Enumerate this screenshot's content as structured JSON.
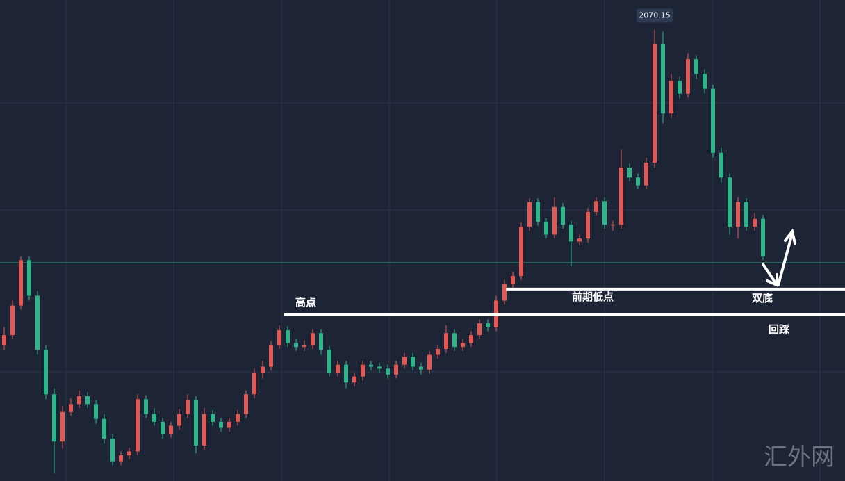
{
  "chart_data": {
    "type": "candlestick",
    "ylim": [
      1612,
      2100
    ],
    "up_color": "#e05a55",
    "down_color": "#2fb38a",
    "ohlc": [
      [
        1750,
        1768,
        1745,
        1760
      ],
      [
        1760,
        1795,
        1756,
        1790
      ],
      [
        1790,
        1840,
        1786,
        1836
      ],
      [
        1836,
        1840,
        1795,
        1800
      ],
      [
        1800,
        1805,
        1740,
        1745
      ],
      [
        1745,
        1750,
        1695,
        1700
      ],
      [
        1700,
        1706,
        1620,
        1652
      ],
      [
        1652,
        1688,
        1645,
        1682
      ],
      [
        1682,
        1696,
        1678,
        1690
      ],
      [
        1690,
        1704,
        1686,
        1698
      ],
      [
        1698,
        1702,
        1686,
        1690
      ],
      [
        1690,
        1694,
        1670,
        1675
      ],
      [
        1675,
        1680,
        1650,
        1655
      ],
      [
        1655,
        1660,
        1628,
        1632
      ],
      [
        1632,
        1642,
        1628,
        1638
      ],
      [
        1638,
        1646,
        1634,
        1642
      ],
      [
        1642,
        1700,
        1638,
        1695
      ],
      [
        1695,
        1699,
        1676,
        1680
      ],
      [
        1680,
        1686,
        1668,
        1672
      ],
      [
        1672,
        1676,
        1655,
        1660
      ],
      [
        1660,
        1672,
        1656,
        1668
      ],
      [
        1668,
        1685,
        1664,
        1680
      ],
      [
        1680,
        1700,
        1676,
        1694
      ],
      [
        1694,
        1698,
        1640,
        1648
      ],
      [
        1648,
        1686,
        1644,
        1680
      ],
      [
        1680,
        1684,
        1668,
        1672
      ],
      [
        1672,
        1676,
        1662,
        1666
      ],
      [
        1666,
        1676,
        1662,
        1672
      ],
      [
        1672,
        1684,
        1668,
        1680
      ],
      [
        1680,
        1704,
        1676,
        1700
      ],
      [
        1700,
        1726,
        1696,
        1722
      ],
      [
        1722,
        1734,
        1716,
        1728
      ],
      [
        1728,
        1754,
        1724,
        1750
      ],
      [
        1750,
        1770,
        1746,
        1765
      ],
      [
        1765,
        1769,
        1748,
        1752
      ],
      [
        1752,
        1756,
        1744,
        1748
      ],
      [
        1748,
        1755,
        1744,
        1750
      ],
      [
        1750,
        1766,
        1746,
        1762
      ],
      [
        1762,
        1766,
        1740,
        1745
      ],
      [
        1745,
        1749,
        1718,
        1722
      ],
      [
        1722,
        1734,
        1718,
        1730
      ],
      [
        1730,
        1734,
        1706,
        1712
      ],
      [
        1712,
        1722,
        1708,
        1718
      ],
      [
        1718,
        1734,
        1714,
        1730
      ],
      [
        1730,
        1734,
        1724,
        1728
      ],
      [
        1728,
        1732,
        1722,
        1726
      ],
      [
        1726,
        1730,
        1716,
        1720
      ],
      [
        1720,
        1734,
        1716,
        1730
      ],
      [
        1730,
        1742,
        1726,
        1738
      ],
      [
        1738,
        1742,
        1724,
        1728
      ],
      [
        1728,
        1732,
        1720,
        1725
      ],
      [
        1725,
        1744,
        1721,
        1740
      ],
      [
        1740,
        1750,
        1736,
        1746
      ],
      [
        1746,
        1770,
        1742,
        1762
      ],
      [
        1762,
        1766,
        1744,
        1748
      ],
      [
        1748,
        1756,
        1744,
        1752
      ],
      [
        1752,
        1764,
        1748,
        1760
      ],
      [
        1760,
        1776,
        1756,
        1772
      ],
      [
        1772,
        1776,
        1764,
        1768
      ],
      [
        1768,
        1800,
        1764,
        1795
      ],
      [
        1795,
        1816,
        1791,
        1812
      ],
      [
        1812,
        1824,
        1808,
        1820
      ],
      [
        1820,
        1874,
        1816,
        1870
      ],
      [
        1870,
        1899,
        1866,
        1895
      ],
      [
        1895,
        1899,
        1871,
        1875
      ],
      [
        1875,
        1879,
        1858,
        1862
      ],
      [
        1862,
        1900,
        1858,
        1890
      ],
      [
        1890,
        1894,
        1868,
        1872
      ],
      [
        1872,
        1876,
        1830,
        1855
      ],
      [
        1855,
        1862,
        1851,
        1858
      ],
      [
        1858,
        1889,
        1854,
        1885
      ],
      [
        1885,
        1900,
        1881,
        1896
      ],
      [
        1896,
        1900,
        1868,
        1872
      ],
      [
        1872,
        1876,
        1866,
        1872
      ],
      [
        1872,
        1948,
        1868,
        1930
      ],
      [
        1930,
        1934,
        1916,
        1920
      ],
      [
        1920,
        1924,
        1908,
        1912
      ],
      [
        1912,
        1940,
        1908,
        1935
      ],
      [
        1935,
        2070.15,
        1930,
        2055
      ],
      [
        2055,
        2068,
        1975,
        1985
      ],
      [
        1985,
        2025,
        1980,
        2018
      ],
      [
        2018,
        2022,
        2000,
        2005
      ],
      [
        2005,
        2046,
        2001,
        2040
      ],
      [
        2040,
        2044,
        2020,
        2025
      ],
      [
        2025,
        2030,
        2005,
        2010
      ],
      [
        2010,
        2014,
        1940,
        1945
      ],
      [
        1945,
        1950,
        1915,
        1920
      ],
      [
        1920,
        1924,
        1862,
        1870
      ],
      [
        1870,
        1900,
        1858,
        1895
      ],
      [
        1895,
        1899,
        1866,
        1870
      ],
      [
        1870,
        1884,
        1866,
        1878
      ],
      [
        1878,
        1882,
        1836,
        1840
      ]
    ],
    "price_line": 1833.5,
    "levels": [
      1780.6,
      1806.7
    ],
    "annotations": [
      "高点",
      "前期低点",
      "双底",
      "回踩"
    ],
    "watermark": "汇外网"
  }
}
